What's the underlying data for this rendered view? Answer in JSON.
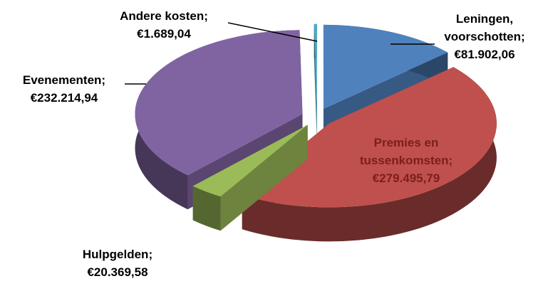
{
  "chart_data": {
    "type": "pie3d",
    "categories": [
      "Leningen, voorschotten;",
      "Premies en tussenkomsten;",
      "Hulpgelden;",
      "Evenementen;",
      "Andere kosten;"
    ],
    "values": [
      81902.06,
      279495.79,
      20369.58,
      232214.94,
      1689.04
    ],
    "value_labels": [
      "€81.902,06",
      "€279.495,79",
      "€20.369,58",
      "€232.214,94",
      "€1.689,04"
    ],
    "colors": [
      "#4f81bd",
      "#c0504d",
      "#9bbb59",
      "#8064a2",
      "#4bacc6"
    ]
  }
}
